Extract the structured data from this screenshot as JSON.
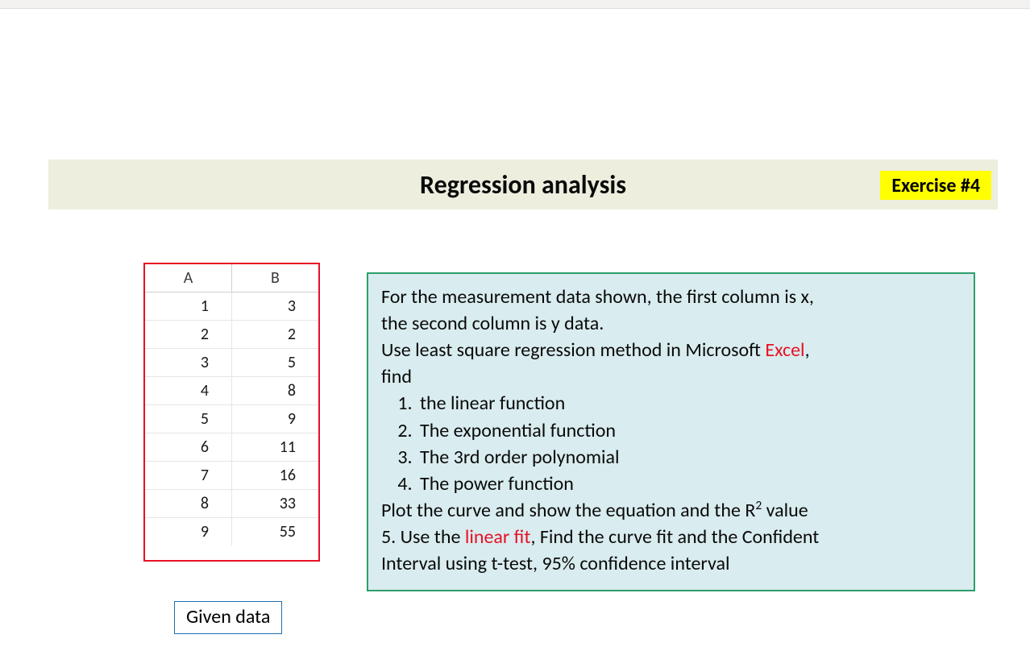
{
  "colors": {
    "title_bg": "#edeedd",
    "badge_bg": "#ffff00",
    "table_border": "#e81123",
    "caption_border": "#1f6fb2",
    "instruction_border": "#2e9e6b",
    "instruction_bg": "#d9ecef",
    "red_text": "#e81123"
  },
  "title": "Regression analysis",
  "badge": "Exercise #4",
  "table": {
    "columns": [
      "A",
      "B"
    ],
    "rows": [
      [
        "1",
        "3"
      ],
      [
        "2",
        "2"
      ],
      [
        "3",
        "5"
      ],
      [
        "4",
        "8"
      ],
      [
        "5",
        "9"
      ],
      [
        "6",
        "11"
      ],
      [
        "7",
        "16"
      ],
      [
        "8",
        "33"
      ],
      [
        "9",
        "55"
      ]
    ],
    "caption": "Given data"
  },
  "instructions": {
    "intro_line1": "For the measurement data shown, the first column is x,",
    "intro_line2": "the second column is y data.",
    "use_line_prefix": "Use least square regression method in Microsoft ",
    "excel_word": "Excel",
    "use_line_suffix": ",",
    "find_word": "find",
    "items": [
      "the linear function",
      "The exponential function",
      "The 3rd order polynomial",
      "The power function"
    ],
    "plot_prefix": "Plot the curve and show the equation and the R",
    "plot_suffix": " value",
    "five_prefix": "5. Use the ",
    "linear_fit": "linear fit",
    "five_suffix": ", Find the curve fit and the Confident",
    "interval_line": "Interval using t-test, 95% confidence interval"
  }
}
